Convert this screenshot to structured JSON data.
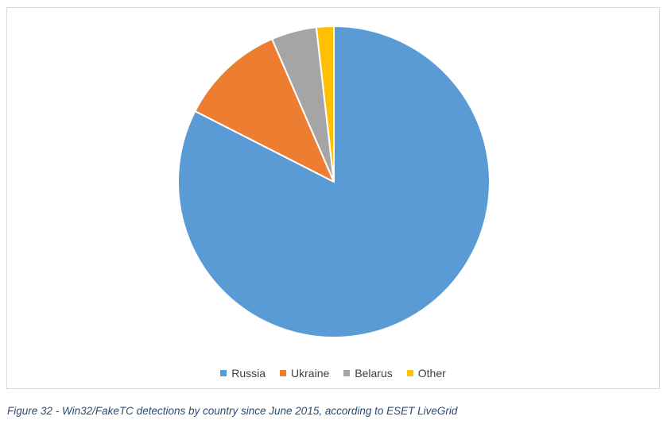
{
  "chart_data": {
    "type": "pie",
    "title": "",
    "categories": [
      "Russia",
      "Ukraine",
      "Belarus",
      "Other"
    ],
    "values": [
      82.5,
      11.0,
      4.7,
      1.8
    ],
    "unit": "percent",
    "colors": [
      "#5b9bd5",
      "#ed7d31",
      "#a5a5a5",
      "#ffc000"
    ],
    "start_angle_deg": 0,
    "direction": "clockwise",
    "legend_position": "bottom"
  },
  "caption": "Figure 32 - Win32/FakeTC detections by country since June 2015, according to ESET LiveGrid"
}
